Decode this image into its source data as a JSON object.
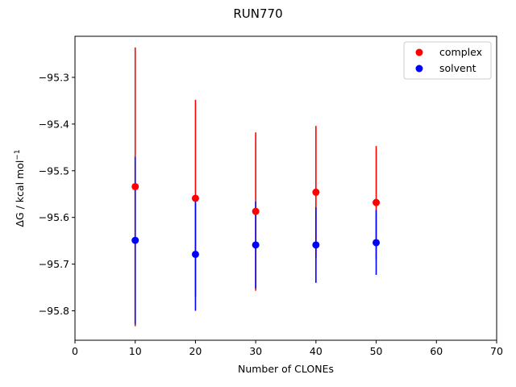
{
  "chart_data": {
    "type": "scatter",
    "title": "RUN770",
    "xlabel": "Number of CLONEs",
    "ylabel_prefix": "ΔG / kcal mol",
    "ylabel_sup": "−1",
    "xlim": [
      0,
      70
    ],
    "ylim": [
      -95.863,
      -95.212
    ],
    "x_ticks": [
      0,
      10,
      20,
      30,
      40,
      50,
      60,
      70
    ],
    "x_tick_labels": [
      "0",
      "10",
      "20",
      "30",
      "40",
      "50",
      "60",
      "70"
    ],
    "y_ticks": [
      -95.3,
      -95.4,
      -95.5,
      -95.6,
      -95.7,
      -95.8
    ],
    "y_tick_labels": [
      "−95.3",
      "−95.4",
      "−95.5",
      "−95.6",
      "−95.7",
      "−95.8"
    ],
    "grid": false,
    "legend_position": "top-right",
    "series": [
      {
        "name": "complex",
        "color": "#ff0000",
        "x": [
          10,
          20,
          30,
          40,
          50
        ],
        "y": [
          -95.534,
          -95.559,
          -95.587,
          -95.546,
          -95.568
        ],
        "err_low": [
          -95.833,
          -95.77,
          -95.757,
          -95.688,
          -95.69
        ],
        "err_high": [
          -95.236,
          -95.348,
          -95.418,
          -95.404,
          -95.447
        ]
      },
      {
        "name": "solvent",
        "color": "#0000ff",
        "x": [
          10,
          20,
          30,
          40,
          50
        ],
        "y": [
          -95.649,
          -95.679,
          -95.659,
          -95.659,
          -95.654
        ],
        "err_low": [
          -95.829,
          -95.8,
          -95.752,
          -95.74,
          -95.723
        ],
        "err_high": [
          -95.47,
          -95.556,
          -95.566,
          -95.578,
          -95.584
        ]
      }
    ]
  }
}
